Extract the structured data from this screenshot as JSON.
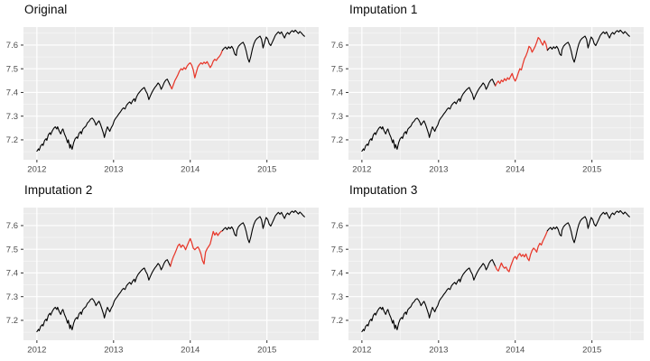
{
  "figure": {
    "background": "#ffffff",
    "panel_background": "#ebebeb",
    "grid_major_color": "#ffffff",
    "grid_minor_color": "#ffffff",
    "observed_color": "#000000",
    "imputed_color": "#e8382b",
    "axis_text_color": "#4d4d4d",
    "tick_mark_color": "#333333"
  },
  "chart_data": {
    "type": "line",
    "x_domain": [
      2011.825,
      2015.675
    ],
    "y_domain": [
      7.116,
      7.676
    ],
    "x_ticks": [
      {
        "value": 2012,
        "label": "2012"
      },
      {
        "value": 2013,
        "label": "2013"
      },
      {
        "value": 2014,
        "label": "2014"
      },
      {
        "value": 2015,
        "label": "2015"
      }
    ],
    "y_ticks": [
      {
        "value": 7.2,
        "label": "7.2"
      },
      {
        "value": 7.3,
        "label": "7.3"
      },
      {
        "value": 7.4,
        "label": "7.4"
      },
      {
        "value": 7.5,
        "label": "7.5"
      },
      {
        "value": 7.6,
        "label": "7.6"
      }
    ],
    "x_minor": [
      2012.5,
      2013.5,
      2014.5,
      2015.5
    ],
    "y_minor": [
      7.15,
      7.25,
      7.35,
      7.45,
      7.55,
      7.65
    ],
    "gap_interval": [
      2013.74,
      2014.42
    ],
    "observed_pre": [
      [
        2012.0,
        7.152
      ],
      [
        2012.02,
        7.162
      ],
      [
        2012.03,
        7.156
      ],
      [
        2012.05,
        7.175
      ],
      [
        2012.07,
        7.182
      ],
      [
        2012.08,
        7.176
      ],
      [
        2012.1,
        7.198
      ],
      [
        2012.12,
        7.205
      ],
      [
        2012.13,
        7.198
      ],
      [
        2012.15,
        7.222
      ],
      [
        2012.17,
        7.23
      ],
      [
        2012.18,
        7.222
      ],
      [
        2012.2,
        7.238
      ],
      [
        2012.22,
        7.248
      ],
      [
        2012.24,
        7.255
      ],
      [
        2012.26,
        7.246
      ],
      [
        2012.27,
        7.255
      ],
      [
        2012.29,
        7.238
      ],
      [
        2012.31,
        7.225
      ],
      [
        2012.33,
        7.242
      ],
      [
        2012.34,
        7.246
      ],
      [
        2012.36,
        7.225
      ],
      [
        2012.38,
        7.21
      ],
      [
        2012.4,
        7.188
      ],
      [
        2012.41,
        7.2
      ],
      [
        2012.43,
        7.165
      ],
      [
        2012.44,
        7.18
      ],
      [
        2012.46,
        7.16
      ],
      [
        2012.48,
        7.188
      ],
      [
        2012.5,
        7.205
      ],
      [
        2012.52,
        7.212
      ],
      [
        2012.53,
        7.206
      ],
      [
        2012.55,
        7.228
      ],
      [
        2012.57,
        7.235
      ],
      [
        2012.58,
        7.225
      ],
      [
        2012.6,
        7.245
      ],
      [
        2012.62,
        7.252
      ],
      [
        2012.64,
        7.258
      ],
      [
        2012.66,
        7.272
      ],
      [
        2012.68,
        7.278
      ],
      [
        2012.7,
        7.288
      ],
      [
        2012.72,
        7.292
      ],
      [
        2012.74,
        7.285
      ],
      [
        2012.76,
        7.272
      ],
      [
        2012.77,
        7.262
      ],
      [
        2012.79,
        7.272
      ],
      [
        2012.81,
        7.28
      ],
      [
        2012.83,
        7.265
      ],
      [
        2012.85,
        7.245
      ],
      [
        2012.87,
        7.225
      ],
      [
        2012.88,
        7.21
      ],
      [
        2012.9,
        7.235
      ],
      [
        2012.92,
        7.255
      ],
      [
        2012.93,
        7.248
      ],
      [
        2012.95,
        7.236
      ],
      [
        2012.97,
        7.252
      ],
      [
        2012.99,
        7.262
      ],
      [
        2013.01,
        7.282
      ],
      [
        2013.03,
        7.292
      ],
      [
        2013.05,
        7.3
      ],
      [
        2013.07,
        7.31
      ],
      [
        2013.09,
        7.318
      ],
      [
        2013.11,
        7.328
      ],
      [
        2013.13,
        7.335
      ],
      [
        2013.15,
        7.33
      ],
      [
        2013.17,
        7.346
      ],
      [
        2013.19,
        7.354
      ],
      [
        2013.21,
        7.36
      ],
      [
        2013.23,
        7.352
      ],
      [
        2013.25,
        7.366
      ],
      [
        2013.27,
        7.374
      ],
      [
        2013.28,
        7.362
      ],
      [
        2013.3,
        7.382
      ],
      [
        2013.32,
        7.394
      ],
      [
        2013.34,
        7.402
      ],
      [
        2013.36,
        7.41
      ],
      [
        2013.38,
        7.416
      ],
      [
        2013.4,
        7.421
      ],
      [
        2013.42,
        7.406
      ],
      [
        2013.44,
        7.394
      ],
      [
        2013.46,
        7.37
      ],
      [
        2013.48,
        7.386
      ],
      [
        2013.5,
        7.4
      ],
      [
        2013.52,
        7.412
      ],
      [
        2013.54,
        7.422
      ],
      [
        2013.56,
        7.43
      ],
      [
        2013.58,
        7.44
      ],
      [
        2013.6,
        7.432
      ],
      [
        2013.62,
        7.413
      ],
      [
        2013.64,
        7.426
      ],
      [
        2013.66,
        7.442
      ],
      [
        2013.68,
        7.452
      ],
      [
        2013.7,
        7.456
      ],
      [
        2013.72,
        7.442
      ],
      [
        2013.74,
        7.428
      ]
    ],
    "observed_post": [
      [
        2014.42,
        7.578
      ],
      [
        2014.44,
        7.586
      ],
      [
        2014.46,
        7.592
      ],
      [
        2014.48,
        7.583
      ],
      [
        2014.5,
        7.593
      ],
      [
        2014.52,
        7.586
      ],
      [
        2014.54,
        7.595
      ],
      [
        2014.56,
        7.584
      ],
      [
        2014.58,
        7.562
      ],
      [
        2014.6,
        7.556
      ],
      [
        2014.61,
        7.58
      ],
      [
        2014.63,
        7.595
      ],
      [
        2014.65,
        7.602
      ],
      [
        2014.67,
        7.608
      ],
      [
        2014.69,
        7.612
      ],
      [
        2014.71,
        7.598
      ],
      [
        2014.73,
        7.575
      ],
      [
        2014.75,
        7.545
      ],
      [
        2014.77,
        7.528
      ],
      [
        2014.79,
        7.552
      ],
      [
        2014.81,
        7.582
      ],
      [
        2014.83,
        7.605
      ],
      [
        2014.85,
        7.62
      ],
      [
        2014.87,
        7.628
      ],
      [
        2014.89,
        7.633
      ],
      [
        2014.91,
        7.638
      ],
      [
        2014.93,
        7.625
      ],
      [
        2014.95,
        7.588
      ],
      [
        2014.97,
        7.612
      ],
      [
        2014.99,
        7.634
      ],
      [
        2015.01,
        7.626
      ],
      [
        2015.03,
        7.606
      ],
      [
        2015.05,
        7.598
      ],
      [
        2015.07,
        7.612
      ],
      [
        2015.09,
        7.626
      ],
      [
        2015.11,
        7.641
      ],
      [
        2015.13,
        7.649
      ],
      [
        2015.15,
        7.656
      ],
      [
        2015.17,
        7.648
      ],
      [
        2015.19,
        7.656
      ],
      [
        2015.21,
        7.642
      ],
      [
        2015.23,
        7.63
      ],
      [
        2015.25,
        7.646
      ],
      [
        2015.27,
        7.653
      ],
      [
        2015.29,
        7.646
      ],
      [
        2015.31,
        7.656
      ],
      [
        2015.33,
        7.661
      ],
      [
        2015.35,
        7.655
      ],
      [
        2015.37,
        7.663
      ],
      [
        2015.39,
        7.656
      ],
      [
        2015.41,
        7.649
      ],
      [
        2015.43,
        7.657
      ],
      [
        2015.45,
        7.651
      ],
      [
        2015.47,
        7.643
      ],
      [
        2015.49,
        7.637
      ]
    ],
    "panels": [
      {
        "title": "Original",
        "imputed": [
          [
            2013.74,
            7.428
          ],
          [
            2013.76,
            7.415
          ],
          [
            2013.78,
            7.432
          ],
          [
            2013.8,
            7.45
          ],
          [
            2013.82,
            7.462
          ],
          [
            2013.84,
            7.475
          ],
          [
            2013.86,
            7.49
          ],
          [
            2013.88,
            7.5
          ],
          [
            2013.9,
            7.495
          ],
          [
            2013.92,
            7.505
          ],
          [
            2013.94,
            7.498
          ],
          [
            2013.96,
            7.512
          ],
          [
            2013.98,
            7.52
          ],
          [
            2014.0,
            7.525
          ],
          [
            2014.02,
            7.515
          ],
          [
            2014.04,
            7.495
          ],
          [
            2014.06,
            7.462
          ],
          [
            2014.08,
            7.485
          ],
          [
            2014.1,
            7.508
          ],
          [
            2014.12,
            7.518
          ],
          [
            2014.14,
            7.525
          ],
          [
            2014.16,
            7.52
          ],
          [
            2014.18,
            7.528
          ],
          [
            2014.2,
            7.522
          ],
          [
            2014.22,
            7.53
          ],
          [
            2014.24,
            7.518
          ],
          [
            2014.26,
            7.505
          ],
          [
            2014.28,
            7.515
          ],
          [
            2014.3,
            7.532
          ],
          [
            2014.32,
            7.54
          ],
          [
            2014.34,
            7.535
          ],
          [
            2014.36,
            7.545
          ],
          [
            2014.38,
            7.552
          ],
          [
            2014.4,
            7.562
          ],
          [
            2014.42,
            7.578
          ]
        ]
      },
      {
        "title": "Imputation 1",
        "imputed": [
          [
            2013.74,
            7.428
          ],
          [
            2013.76,
            7.44
          ],
          [
            2013.78,
            7.448
          ],
          [
            2013.8,
            7.438
          ],
          [
            2013.82,
            7.452
          ],
          [
            2013.84,
            7.445
          ],
          [
            2013.86,
            7.458
          ],
          [
            2013.88,
            7.45
          ],
          [
            2013.9,
            7.462
          ],
          [
            2013.92,
            7.455
          ],
          [
            2013.94,
            7.468
          ],
          [
            2013.96,
            7.48
          ],
          [
            2013.98,
            7.46
          ],
          [
            2014.0,
            7.448
          ],
          [
            2014.02,
            7.462
          ],
          [
            2014.04,
            7.482
          ],
          [
            2014.06,
            7.5
          ],
          [
            2014.08,
            7.495
          ],
          [
            2014.1,
            7.52
          ],
          [
            2014.12,
            7.542
          ],
          [
            2014.14,
            7.555
          ],
          [
            2014.16,
            7.572
          ],
          [
            2014.18,
            7.595
          ],
          [
            2014.2,
            7.588
          ],
          [
            2014.22,
            7.57
          ],
          [
            2014.24,
            7.582
          ],
          [
            2014.26,
            7.595
          ],
          [
            2014.28,
            7.612
          ],
          [
            2014.3,
            7.632
          ],
          [
            2014.32,
            7.625
          ],
          [
            2014.34,
            7.61
          ],
          [
            2014.36,
            7.6
          ],
          [
            2014.38,
            7.618
          ],
          [
            2014.4,
            7.605
          ],
          [
            2014.42,
            7.578
          ]
        ]
      },
      {
        "title": "Imputation 2",
        "imputed": [
          [
            2013.74,
            7.428
          ],
          [
            2013.76,
            7.45
          ],
          [
            2013.78,
            7.468
          ],
          [
            2013.8,
            7.482
          ],
          [
            2013.82,
            7.498
          ],
          [
            2013.84,
            7.515
          ],
          [
            2013.86,
            7.522
          ],
          [
            2013.88,
            7.508
          ],
          [
            2013.9,
            7.518
          ],
          [
            2013.92,
            7.512
          ],
          [
            2013.94,
            7.498
          ],
          [
            2013.96,
            7.515
          ],
          [
            2013.98,
            7.53
          ],
          [
            2014.0,
            7.545
          ],
          [
            2014.02,
            7.528
          ],
          [
            2014.04,
            7.505
          ],
          [
            2014.06,
            7.498
          ],
          [
            2014.08,
            7.505
          ],
          [
            2014.1,
            7.51
          ],
          [
            2014.12,
            7.498
          ],
          [
            2014.14,
            7.48
          ],
          [
            2014.16,
            7.452
          ],
          [
            2014.18,
            7.438
          ],
          [
            2014.2,
            7.488
          ],
          [
            2014.22,
            7.502
          ],
          [
            2014.24,
            7.512
          ],
          [
            2014.26,
            7.522
          ],
          [
            2014.28,
            7.548
          ],
          [
            2014.3,
            7.575
          ],
          [
            2014.32,
            7.56
          ],
          [
            2014.34,
            7.57
          ],
          [
            2014.36,
            7.558
          ],
          [
            2014.38,
            7.568
          ],
          [
            2014.4,
            7.575
          ],
          [
            2014.42,
            7.578
          ]
        ]
      },
      {
        "title": "Imputation 3",
        "imputed": [
          [
            2013.74,
            7.428
          ],
          [
            2013.76,
            7.415
          ],
          [
            2013.78,
            7.408
          ],
          [
            2013.8,
            7.425
          ],
          [
            2013.82,
            7.442
          ],
          [
            2013.84,
            7.428
          ],
          [
            2013.86,
            7.42
          ],
          [
            2013.88,
            7.425
          ],
          [
            2013.9,
            7.412
          ],
          [
            2013.92,
            7.405
          ],
          [
            2013.94,
            7.428
          ],
          [
            2013.96,
            7.445
          ],
          [
            2013.98,
            7.462
          ],
          [
            2014.0,
            7.47
          ],
          [
            2014.02,
            7.458
          ],
          [
            2014.04,
            7.475
          ],
          [
            2014.06,
            7.482
          ],
          [
            2014.08,
            7.47
          ],
          [
            2014.1,
            7.478
          ],
          [
            2014.12,
            7.468
          ],
          [
            2014.14,
            7.48
          ],
          [
            2014.16,
            7.462
          ],
          [
            2014.18,
            7.452
          ],
          [
            2014.2,
            7.478
          ],
          [
            2014.22,
            7.495
          ],
          [
            2014.24,
            7.505
          ],
          [
            2014.26,
            7.498
          ],
          [
            2014.28,
            7.488
          ],
          [
            2014.3,
            7.512
          ],
          [
            2014.32,
            7.525
          ],
          [
            2014.34,
            7.518
          ],
          [
            2014.36,
            7.535
          ],
          [
            2014.38,
            7.548
          ],
          [
            2014.4,
            7.562
          ],
          [
            2014.42,
            7.578
          ]
        ]
      }
    ]
  }
}
